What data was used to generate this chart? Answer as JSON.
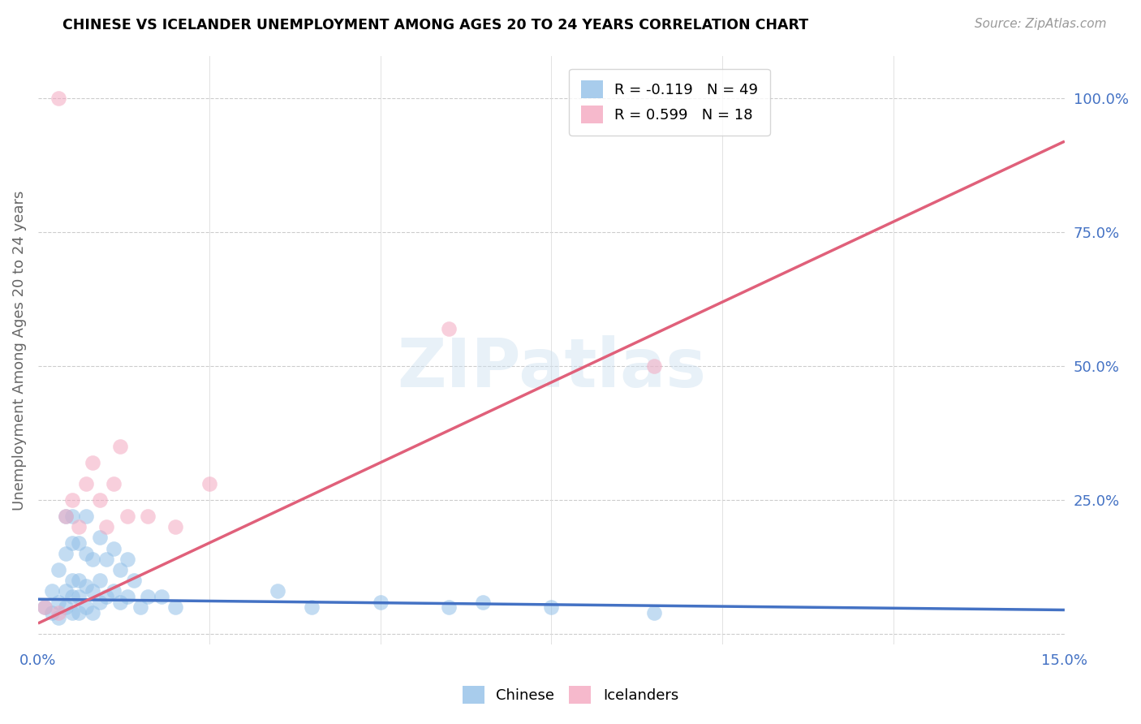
{
  "title": "CHINESE VS ICELANDER UNEMPLOYMENT AMONG AGES 20 TO 24 YEARS CORRELATION CHART",
  "source": "Source: ZipAtlas.com",
  "ylabel": "Unemployment Among Ages 20 to 24 years",
  "xlim": [
    0.0,
    0.15
  ],
  "ylim": [
    -0.02,
    1.08
  ],
  "xticks": [
    0.0,
    0.025,
    0.05,
    0.075,
    0.1,
    0.125,
    0.15
  ],
  "xtick_labels": [
    "0.0%",
    "",
    "",
    "",
    "",
    "",
    "15.0%"
  ],
  "ytick_labels_right": [
    "100.0%",
    "75.0%",
    "50.0%",
    "25.0%",
    ""
  ],
  "ytick_positions_right": [
    1.0,
    0.75,
    0.5,
    0.25,
    0.0
  ],
  "chinese_color": "#92c0e8",
  "icelander_color": "#f4a8c0",
  "chinese_line_color": "#4472c4",
  "icelander_line_color": "#e0607a",
  "watermark": "ZIPatlas",
  "chinese_R": -0.119,
  "chinese_N": 49,
  "icelander_R": 0.599,
  "icelander_N": 18,
  "chinese_scatter_x": [
    0.001,
    0.002,
    0.002,
    0.003,
    0.003,
    0.003,
    0.004,
    0.004,
    0.004,
    0.004,
    0.005,
    0.005,
    0.005,
    0.005,
    0.005,
    0.006,
    0.006,
    0.006,
    0.006,
    0.007,
    0.007,
    0.007,
    0.007,
    0.008,
    0.008,
    0.008,
    0.009,
    0.009,
    0.009,
    0.01,
    0.01,
    0.011,
    0.011,
    0.012,
    0.012,
    0.013,
    0.013,
    0.014,
    0.015,
    0.016,
    0.018,
    0.02,
    0.035,
    0.04,
    0.05,
    0.06,
    0.065,
    0.075,
    0.09
  ],
  "chinese_scatter_y": [
    0.05,
    0.04,
    0.08,
    0.03,
    0.06,
    0.12,
    0.05,
    0.08,
    0.15,
    0.22,
    0.04,
    0.07,
    0.1,
    0.17,
    0.22,
    0.04,
    0.07,
    0.1,
    0.17,
    0.05,
    0.09,
    0.15,
    0.22,
    0.04,
    0.08,
    0.14,
    0.06,
    0.1,
    0.18,
    0.07,
    0.14,
    0.08,
    0.16,
    0.06,
    0.12,
    0.07,
    0.14,
    0.1,
    0.05,
    0.07,
    0.07,
    0.05,
    0.08,
    0.05,
    0.06,
    0.05,
    0.06,
    0.05,
    0.04
  ],
  "icelander_scatter_x": [
    0.001,
    0.003,
    0.003,
    0.004,
    0.005,
    0.006,
    0.007,
    0.008,
    0.009,
    0.01,
    0.011,
    0.012,
    0.013,
    0.016,
    0.02,
    0.025,
    0.06,
    0.09
  ],
  "icelander_scatter_y": [
    0.05,
    1.0,
    0.04,
    0.22,
    0.25,
    0.2,
    0.28,
    0.32,
    0.25,
    0.2,
    0.28,
    0.35,
    0.22,
    0.22,
    0.2,
    0.28,
    0.57,
    0.5
  ],
  "chinese_line_x": [
    0.0,
    0.15
  ],
  "chinese_line_y": [
    0.065,
    0.045
  ],
  "icelander_line_x": [
    0.0,
    0.15
  ],
  "icelander_line_y": [
    0.02,
    0.92
  ]
}
